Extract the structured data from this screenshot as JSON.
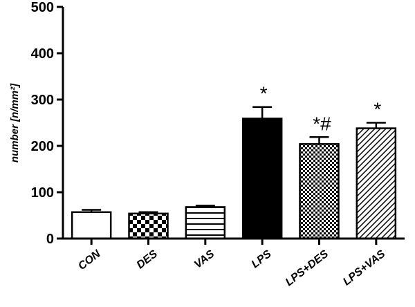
{
  "chart_data": {
    "type": "bar",
    "ylabel": "number  [n/mm²]",
    "ylim": [
      0,
      500
    ],
    "yticks": [
      0,
      100,
      200,
      300,
      400,
      500
    ],
    "grid": false,
    "categories": [
      "CON",
      "DES",
      "VAS",
      "LPS",
      "LPS+DES",
      "LPS+VAS"
    ],
    "values": [
      57,
      54,
      68,
      259,
      204,
      238
    ],
    "errors": [
      5,
      3,
      3,
      25,
      15,
      12
    ],
    "fills": [
      "white",
      "checkerboard",
      "horizontal-lines",
      "black",
      "fine-checker",
      "diagonal-lines"
    ],
    "annotations": [
      "",
      "",
      "",
      "*",
      "*#",
      "*"
    ]
  }
}
